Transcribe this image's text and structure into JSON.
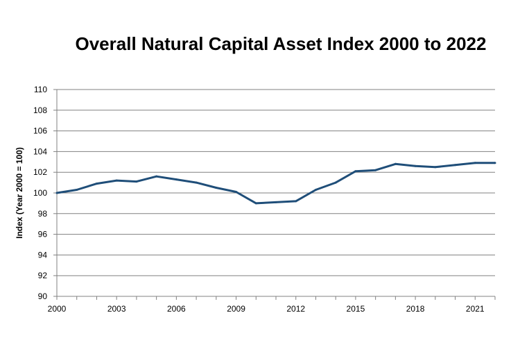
{
  "chart_data": {
    "type": "line",
    "title": "Overall Natural Capital Asset Index 2000 to 2022",
    "xlabel": "",
    "ylabel": "Index (Year 2000 = 100)",
    "xlim": [
      2000,
      2022
    ],
    "ylim": [
      90,
      110
    ],
    "x_ticks": [
      2000,
      2003,
      2006,
      2009,
      2012,
      2015,
      2018,
      2021
    ],
    "y_ticks": [
      90,
      92,
      94,
      96,
      98,
      100,
      102,
      104,
      106,
      108,
      110
    ],
    "grid": true,
    "legend": "none",
    "colors": {
      "series": "#1f4e79",
      "grid": "#808080",
      "axis": "#808080"
    },
    "series": [
      {
        "name": "Overall Natural Capital Asset Index",
        "x": [
          2000,
          2001,
          2002,
          2003,
          2004,
          2005,
          2006,
          2007,
          2008,
          2009,
          2010,
          2011,
          2012,
          2013,
          2014,
          2015,
          2016,
          2017,
          2018,
          2019,
          2020,
          2021,
          2022
        ],
        "values": [
          100.0,
          100.3,
          100.9,
          101.2,
          101.1,
          101.6,
          101.3,
          101.0,
          100.5,
          100.1,
          99.0,
          99.1,
          99.2,
          100.3,
          101.0,
          102.1,
          102.2,
          102.8,
          102.6,
          102.5,
          102.7,
          102.9,
          102.9
        ]
      }
    ]
  }
}
